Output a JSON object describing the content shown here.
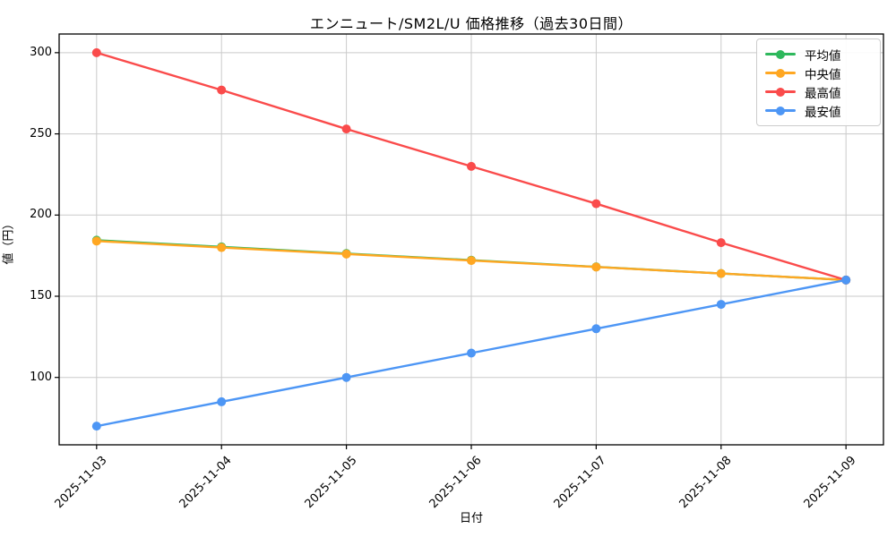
{
  "figure": {
    "background": "#ffffff",
    "grid_color": "#cacaca",
    "spine_color": "#000000",
    "tick_color": "#000000"
  },
  "chart_data": {
    "type": "line",
    "title": "エンニュート/SM2L/U 価格推移（過去30日間）",
    "xlabel": "日付",
    "ylabel": "値（円）",
    "categories": [
      "2025-11-03",
      "2025-11-04",
      "2025-11-05",
      "2025-11-06",
      "2025-11-07",
      "2025-11-08",
      "2025-11-09"
    ],
    "series": [
      {
        "name": "平均値",
        "color": "#2eb85c",
        "values": [
          184.5,
          180.4,
          176.3,
          172.2,
          168.1,
          164.0,
          160.0
        ]
      },
      {
        "name": "中央値",
        "color": "#ffa722",
        "values": [
          184,
          180,
          176,
          172,
          168,
          164,
          160
        ]
      },
      {
        "name": "最高値",
        "color": "#fa4b4b",
        "values": [
          300,
          277,
          253,
          230,
          207,
          183,
          160
        ]
      },
      {
        "name": "最安値",
        "color": "#4d96f5",
        "values": [
          70,
          85,
          100,
          115,
          130,
          145,
          160
        ]
      }
    ],
    "yticks": [
      100,
      150,
      200,
      250,
      300
    ],
    "ylim": [
      58.5,
      311.5
    ],
    "xlim_pad": 0.3,
    "grid": true,
    "legend_position": "upper-right",
    "x_tick_rotation": 45
  }
}
